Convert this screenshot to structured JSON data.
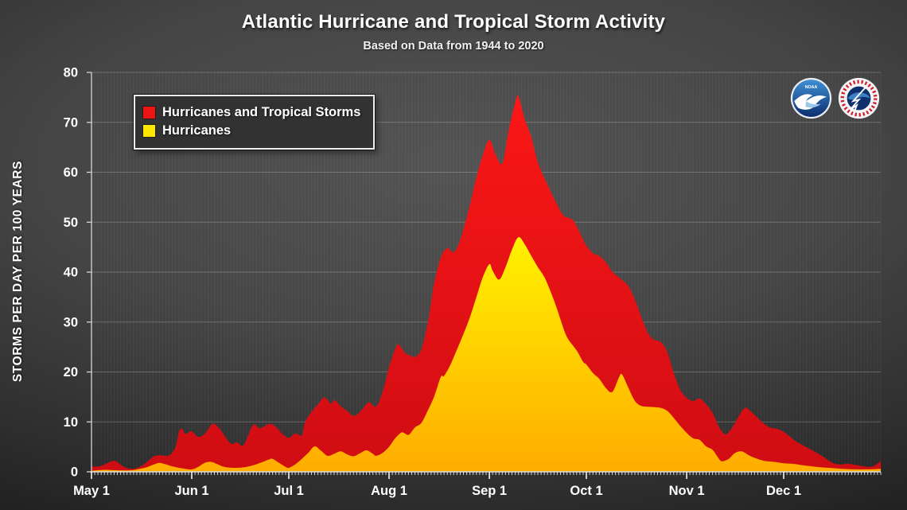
{
  "title": "Atlantic Hurricane and Tropical Storm Activity",
  "subtitle": "Based on Data from 1944 to 2020",
  "legend": {
    "items": [
      {
        "label": "Hurricanes and Tropical Storms",
        "color": "#ed1414"
      },
      {
        "label": "Hurricanes",
        "color": "#ffe600"
      }
    ]
  },
  "logos": [
    {
      "name": "noaa-logo",
      "label": "NOAA"
    },
    {
      "name": "nws-logo",
      "label": "National Weather Service"
    }
  ],
  "colors": {
    "background": "#3f3f3f",
    "red_top": "#fb1717",
    "red_bottom": "#cf0d13",
    "yellow_top": "#fff200",
    "yellow_bottom": "#ffac00",
    "grid_major": "rgba(255,255,255,0.22)",
    "grid_minor": "rgba(255,255,255,0.05)",
    "axis": "#d8d8d8",
    "tick_label": "#ffffff"
  },
  "chart_data": {
    "type": "area",
    "title": "Atlantic Hurricane and Tropical Storm Activity",
    "subtitle": "Based on Data from 1944 to 2020",
    "xlabel": "",
    "ylabel": "STORMS PER DAY PER 100 YEARS",
    "ylim": [
      0,
      80
    ],
    "y_ticks": [
      0,
      10,
      20,
      30,
      40,
      50,
      60,
      70,
      80
    ],
    "x_unit": "days since May 1",
    "x_range_days": [
      0,
      244
    ],
    "x_ticks": [
      {
        "day": 0,
        "label": "May 1"
      },
      {
        "day": 31,
        "label": "Jun 1"
      },
      {
        "day": 61,
        "label": "Jul 1"
      },
      {
        "day": 92,
        "label": "Aug 1"
      },
      {
        "day": 123,
        "label": "Sep 1"
      },
      {
        "day": 153,
        "label": "Oct 1"
      },
      {
        "day": 184,
        "label": "Nov 1"
      },
      {
        "day": 214,
        "label": "Dec 1"
      }
    ],
    "grid": true,
    "legend_position": "top-left",
    "series": [
      {
        "name": "Hurricanes and Tropical Storms",
        "color": "#ed1414",
        "points": [
          [
            0,
            1.0
          ],
          [
            3,
            1.2
          ],
          [
            7,
            2.2
          ],
          [
            10,
            1.0
          ],
          [
            13,
            0.6
          ],
          [
            16,
            1.4
          ],
          [
            19,
            3.0
          ],
          [
            21,
            3.3
          ],
          [
            24,
            3.3
          ],
          [
            26,
            5.0
          ],
          [
            27,
            8.0
          ],
          [
            28,
            8.6
          ],
          [
            29,
            7.6
          ],
          [
            31,
            8.1
          ],
          [
            33,
            7.0
          ],
          [
            35,
            7.6
          ],
          [
            37,
            9.4
          ],
          [
            38,
            9.6
          ],
          [
            40,
            8.3
          ],
          [
            43,
            5.7
          ],
          [
            45,
            5.9
          ],
          [
            47,
            5.4
          ],
          [
            50,
            9.4
          ],
          [
            52,
            8.7
          ],
          [
            55,
            9.6
          ],
          [
            57,
            9.0
          ],
          [
            59,
            7.6
          ],
          [
            61,
            6.8
          ],
          [
            63,
            7.7
          ],
          [
            65,
            7.3
          ],
          [
            66,
            9.9
          ],
          [
            68,
            12.0
          ],
          [
            70,
            13.5
          ],
          [
            72,
            14.9
          ],
          [
            74,
            13.6
          ],
          [
            75,
            14.4
          ],
          [
            77,
            13.2
          ],
          [
            79,
            12.2
          ],
          [
            81,
            11.2
          ],
          [
            83,
            12.0
          ],
          [
            85,
            13.6
          ],
          [
            86,
            13.9
          ],
          [
            88,
            13.1
          ],
          [
            90,
            16.0
          ],
          [
            92,
            21.0
          ],
          [
            94,
            24.8
          ],
          [
            95,
            25.5
          ],
          [
            97,
            23.8
          ],
          [
            99,
            23.2
          ],
          [
            100,
            23.0
          ],
          [
            102,
            24.5
          ],
          [
            104,
            30.0
          ],
          [
            105,
            34.0
          ],
          [
            106,
            38.0
          ],
          [
            108,
            43.0
          ],
          [
            110,
            44.8
          ],
          [
            112,
            44.0
          ],
          [
            114,
            46.5
          ],
          [
            117,
            53.5
          ],
          [
            119,
            59.0
          ],
          [
            121,
            63.5
          ],
          [
            123,
            66.5
          ],
          [
            125,
            63.5
          ],
          [
            127,
            61.8
          ],
          [
            129,
            68.5
          ],
          [
            131,
            74.0
          ],
          [
            132,
            75.2
          ],
          [
            134,
            70.5
          ],
          [
            136,
            67.0
          ],
          [
            138,
            62.0
          ],
          [
            141,
            57.5
          ],
          [
            144,
            53.5
          ],
          [
            146,
            51.3
          ],
          [
            149,
            50.3
          ],
          [
            152,
            46.5
          ],
          [
            153,
            45.3
          ],
          [
            155,
            43.8
          ],
          [
            157,
            43.2
          ],
          [
            159,
            42.0
          ],
          [
            161,
            40.1
          ],
          [
            164,
            38.4
          ],
          [
            166,
            37.2
          ],
          [
            168,
            34.5
          ],
          [
            170,
            31.0
          ],
          [
            172,
            27.8
          ],
          [
            174,
            26.4
          ],
          [
            176,
            26.0
          ],
          [
            178,
            24.0
          ],
          [
            180,
            19.8
          ],
          [
            182,
            16.5
          ],
          [
            184,
            14.8
          ],
          [
            186,
            14.2
          ],
          [
            188,
            14.7
          ],
          [
            190,
            13.5
          ],
          [
            192,
            11.8
          ],
          [
            194,
            9.0
          ],
          [
            196,
            7.5
          ],
          [
            198,
            8.8
          ],
          [
            200,
            11.0
          ],
          [
            202,
            12.8
          ],
          [
            204,
            12.0
          ],
          [
            206,
            10.8
          ],
          [
            208,
            9.6
          ],
          [
            210,
            8.8
          ],
          [
            212,
            8.6
          ],
          [
            214,
            8.0
          ],
          [
            216,
            7.0
          ],
          [
            218,
            6.0
          ],
          [
            220,
            5.3
          ],
          [
            222,
            4.6
          ],
          [
            224,
            3.9
          ],
          [
            226,
            3.1
          ],
          [
            228,
            2.2
          ],
          [
            230,
            1.6
          ],
          [
            232,
            1.5
          ],
          [
            234,
            1.6
          ],
          [
            236,
            1.4
          ],
          [
            238,
            1.2
          ],
          [
            240,
            1.0
          ],
          [
            242,
            1.2
          ],
          [
            244,
            2.2
          ]
        ]
      },
      {
        "name": "Hurricanes",
        "color": "#ffe600",
        "points": [
          [
            0,
            0.2
          ],
          [
            4,
            0.4
          ],
          [
            8,
            0.3
          ],
          [
            12,
            0.3
          ],
          [
            15,
            0.6
          ],
          [
            17,
            0.9
          ],
          [
            19,
            1.4
          ],
          [
            21,
            1.8
          ],
          [
            23,
            1.5
          ],
          [
            25,
            1.1
          ],
          [
            28,
            0.7
          ],
          [
            31,
            0.5
          ],
          [
            33,
            1.0
          ],
          [
            35,
            1.8
          ],
          [
            37,
            2.0
          ],
          [
            39,
            1.5
          ],
          [
            41,
            1.0
          ],
          [
            44,
            0.8
          ],
          [
            47,
            0.9
          ],
          [
            50,
            1.3
          ],
          [
            53,
            2.0
          ],
          [
            55,
            2.5
          ],
          [
            56,
            2.6
          ],
          [
            58,
            1.8
          ],
          [
            60,
            1.0
          ],
          [
            61,
            0.8
          ],
          [
            63,
            1.5
          ],
          [
            65,
            2.6
          ],
          [
            67,
            3.8
          ],
          [
            69,
            5.1
          ],
          [
            71,
            4.2
          ],
          [
            73,
            3.2
          ],
          [
            75,
            3.6
          ],
          [
            77,
            4.1
          ],
          [
            79,
            3.5
          ],
          [
            81,
            3.1
          ],
          [
            83,
            3.7
          ],
          [
            85,
            4.3
          ],
          [
            87,
            3.6
          ],
          [
            88,
            3.2
          ],
          [
            90,
            3.8
          ],
          [
            92,
            5.0
          ],
          [
            94,
            6.8
          ],
          [
            96,
            7.9
          ],
          [
            98,
            7.4
          ],
          [
            100,
            8.9
          ],
          [
            102,
            9.8
          ],
          [
            104,
            12.3
          ],
          [
            106,
            15.2
          ],
          [
            108,
            19.0
          ],
          [
            109,
            19.2
          ],
          [
            111,
            21.5
          ],
          [
            113,
            24.5
          ],
          [
            115,
            27.6
          ],
          [
            117,
            31.0
          ],
          [
            119,
            35.0
          ],
          [
            121,
            39.0
          ],
          [
            123,
            41.6
          ],
          [
            124,
            40.3
          ],
          [
            126,
            38.5
          ],
          [
            128,
            41.0
          ],
          [
            130,
            44.5
          ],
          [
            132,
            47.0
          ],
          [
            134,
            45.5
          ],
          [
            136,
            43.2
          ],
          [
            138,
            41.0
          ],
          [
            140,
            39.0
          ],
          [
            142,
            36.0
          ],
          [
            144,
            32.5
          ],
          [
            145,
            30.5
          ],
          [
            147,
            27.0
          ],
          [
            150,
            24.3
          ],
          [
            152,
            22.0
          ],
          [
            153,
            21.5
          ],
          [
            155,
            19.8
          ],
          [
            157,
            18.6
          ],
          [
            159,
            16.8
          ],
          [
            161,
            16.0
          ],
          [
            163,
            18.8
          ],
          [
            164,
            19.5
          ],
          [
            166,
            16.8
          ],
          [
            168,
            14.2
          ],
          [
            170,
            13.2
          ],
          [
            173,
            13.0
          ],
          [
            176,
            12.8
          ],
          [
            178,
            12.2
          ],
          [
            180,
            10.8
          ],
          [
            182,
            9.2
          ],
          [
            184,
            7.8
          ],
          [
            186,
            6.7
          ],
          [
            188,
            6.4
          ],
          [
            190,
            5.1
          ],
          [
            192,
            4.4
          ],
          [
            194,
            2.6
          ],
          [
            195,
            2.1
          ],
          [
            197,
            2.6
          ],
          [
            199,
            3.8
          ],
          [
            201,
            4.1
          ],
          [
            203,
            3.4
          ],
          [
            205,
            2.8
          ],
          [
            208,
            2.2
          ],
          [
            211,
            2.0
          ],
          [
            214,
            1.7
          ],
          [
            217,
            1.6
          ],
          [
            220,
            1.3
          ],
          [
            224,
            1.0
          ],
          [
            228,
            0.8
          ],
          [
            232,
            0.6
          ],
          [
            236,
            0.5
          ],
          [
            240,
            0.5
          ],
          [
            244,
            0.6
          ]
        ]
      }
    ]
  }
}
